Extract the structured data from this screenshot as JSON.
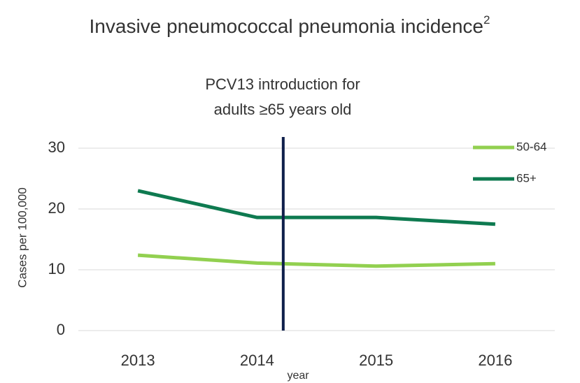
{
  "chart_data": {
    "type": "line",
    "title": "Invasive pneumococcal pneumonia incidence",
    "title_superscript": "2",
    "annotation": [
      "PCV13 introduction for",
      "adults ≥65 years old"
    ],
    "annotation_line_x": 1.22,
    "annotation_color": "#0f1f4b",
    "x_label": "year",
    "y_label": "Cases per 100,000",
    "categories": [
      "2013",
      "2014",
      "2015",
      "2016"
    ],
    "series": [
      {
        "name": "50-64",
        "color": "#92d050",
        "values": [
          12.4,
          11.1,
          10.6,
          11.0
        ]
      },
      {
        "name": "65+",
        "color": "#0e7a50",
        "values": [
          23.0,
          18.6,
          18.6,
          17.5
        ]
      }
    ],
    "ylim": [
      0,
      30
    ],
    "yticks": [
      0,
      10,
      20,
      30
    ],
    "grid": true,
    "legend": "top-right"
  }
}
